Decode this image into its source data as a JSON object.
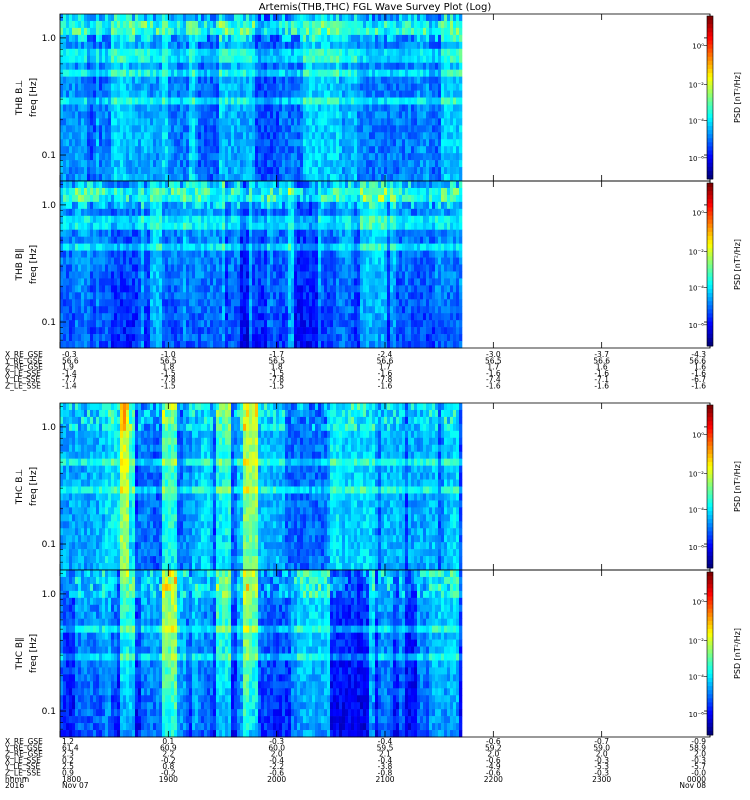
{
  "title": "Artemis(THB,THC) FGL Wave Survey Plot (Log)",
  "colorbar_label": "PSD [nT²/Hz]",
  "colorbar_ticks": [
    "10⁰",
    "10⁻²",
    "10⁻⁴",
    "10⁻⁶"
  ],
  "ephemeris_top": {
    "rows": [
      {
        "label": "X_RE_GSE",
        "values": [
          "-0.3",
          "-1.0",
          "-1.7",
          "-2.4",
          "-3.0",
          "-3.7",
          "-4.3"
        ]
      },
      {
        "label": "Y_RE_GSE",
        "values": [
          "56.6",
          "56.5",
          "56.5",
          "56.6",
          "56.5",
          "56.6",
          "56.6"
        ]
      },
      {
        "label": "Z_RE_GSE",
        "values": [
          "1.9",
          "1.8",
          "1.8",
          "1.7",
          "1.7",
          "1.6",
          "1.6"
        ]
      },
      {
        "label": "X_LE_SSE",
        "values": [
          "-1.4",
          "-1.5",
          "-1.5",
          "-1.6",
          "-1.6",
          "-1.6",
          "-1.6"
        ]
      },
      {
        "label": "Y_LE_SSE",
        "values": [
          "-7.7",
          "-7.8",
          "-7.8",
          "-7.8",
          "-7.4",
          "-7.1",
          "-6.7"
        ]
      },
      {
        "label": "Z_LE_SSE",
        "values": [
          "-1.4",
          "-1.5",
          "-1.5",
          "-1.6",
          "-1.6",
          "-1.6",
          "-1.6"
        ]
      }
    ]
  },
  "ephemeris_bottom": {
    "rows": [
      {
        "label": "X_RE_GSE",
        "values": [
          "1.2",
          "0.1",
          "-0.3",
          "-0.4",
          "-0.6",
          "-0.7",
          "-0.9"
        ]
      },
      {
        "label": "Y_RE_GSE",
        "values": [
          "61.4",
          "60.9",
          "60.0",
          "59.5",
          "59.2",
          "59.0",
          "58.9"
        ]
      },
      {
        "label": "Z_RE_GSE",
        "values": [
          "2.3",
          "2.2",
          "2.0",
          "2.1",
          "2.0",
          "2.0",
          "2.0"
        ]
      },
      {
        "label": "X_LE_SSE",
        "values": [
          "0.2",
          "-0.2",
          "-0.4",
          "-0.4",
          "-0.6",
          "-0.3",
          "-0.3"
        ]
      },
      {
        "label": "Y_LE_SSE",
        "values": [
          "2.5",
          "0.8",
          "-2.2",
          "-3.8",
          "-4.9",
          "-5.3",
          "-5.7"
        ]
      },
      {
        "label": "Z_LE_SSE",
        "values": [
          "0.9",
          "-0.2",
          "-0.6",
          "-0.8",
          "-0.6",
          "-0.3",
          "-0.0"
        ]
      },
      {
        "label": "hhmm",
        "values": [
          "1800",
          "1900",
          "2000",
          "2100",
          "2200",
          "2300",
          "0000"
        ]
      },
      {
        "label": "2016",
        "values": [
          "Nov 07",
          "",
          "",
          "",
          "",
          "",
          "Nov 08"
        ]
      }
    ]
  },
  "chart_data": [
    {
      "type": "heatmap",
      "ylabel": "THB B⊥",
      "ylabel2": "freq [Hz]",
      "yscale": "log",
      "yticks": [
        "1.0",
        "0.1"
      ],
      "zscale": "log",
      "zrange": [
        1e-07,
        10
      ],
      "data_end_fraction": 0.615,
      "features": {
        "bands_hz": [
          0.3,
          0.5,
          0.7,
          1.2
        ],
        "bursts": []
      }
    },
    {
      "type": "heatmap",
      "ylabel": "THB B∥",
      "ylabel2": "freq [Hz]",
      "yscale": "log",
      "yticks": [
        "1.0",
        "0.1"
      ],
      "zscale": "log",
      "zrange": [
        1e-07,
        10
      ],
      "data_end_fraction": 0.615,
      "features": {
        "bands_hz": [
          0.45,
          0.7,
          1.2
        ],
        "bursts": []
      }
    },
    {
      "type": "heatmap",
      "ylabel": "THC B⊥",
      "ylabel2": "freq [Hz]",
      "yscale": "log",
      "yticks": [
        "1.0",
        "0.1"
      ],
      "zscale": "log",
      "zrange": [
        1e-07,
        10
      ],
      "data_end_fraction": 0.615,
      "features": {
        "bands_hz": [
          0.28,
          0.5
        ],
        "bursts": [
          "1837",
          "1900",
          "1930",
          "1945"
        ]
      }
    },
    {
      "type": "heatmap",
      "ylabel": "THC B∥",
      "ylabel2": "freq [Hz]",
      "yscale": "log",
      "yticks": [
        "1.0",
        "0.1"
      ],
      "zscale": "log",
      "zrange": [
        1e-07,
        10
      ],
      "data_end_fraction": 0.615,
      "features": {
        "bands_hz": [
          0.28,
          0.5
        ],
        "bursts": [
          "1837",
          "1900",
          "1930",
          "1945"
        ]
      }
    }
  ]
}
